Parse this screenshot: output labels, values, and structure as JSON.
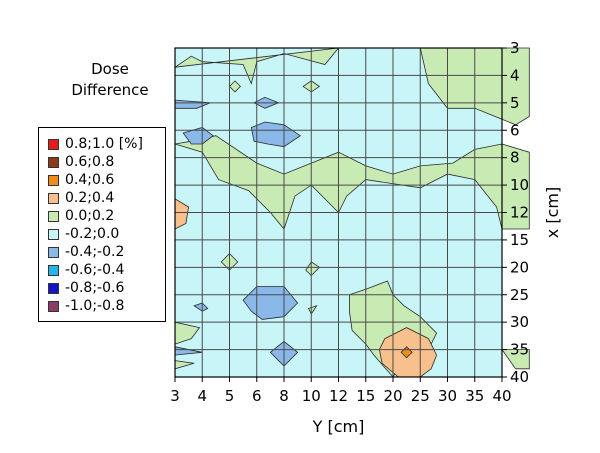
{
  "chart_data": {
    "type": "heatmap",
    "title_lines": [
      "Dose",
      "Difference"
    ],
    "xlabel": "Y [cm]",
    "ylabel": "x [cm]",
    "x_ticks": [
      "3",
      "4",
      "5",
      "6",
      "8",
      "10",
      "12",
      "15",
      "20",
      "25",
      "30",
      "35",
      "40"
    ],
    "y_ticks": [
      "3",
      "4",
      "5",
      "6",
      "8",
      "10",
      "12",
      "15",
      "20",
      "25",
      "30",
      "35",
      "40"
    ],
    "grid": true,
    "legend_position": "left",
    "legend": [
      {
        "label": "0.8;1.0 [%]",
        "color": "#e51c1c"
      },
      {
        "label": "0.6;0.8",
        "color": "#8b3a1a"
      },
      {
        "label": "0.4;0.6",
        "color": "#f08c1a"
      },
      {
        "label": "0.2;0.4",
        "color": "#f7c08c"
      },
      {
        "label": "0.0;0.2",
        "color": "#c8ebb4"
      },
      {
        "label": "-0.2;0.0",
        "color": "#c8f5f8"
      },
      {
        "label": "-0.4;-0.2",
        "color": "#8ab8e8"
      },
      {
        "label": "-0.6;-0.4",
        "color": "#28b4e6"
      },
      {
        "label": "-0.8;-0.6",
        "color": "#1414c8"
      },
      {
        "label": "-1.0;-0.8",
        "color": "#8c3c64"
      }
    ],
    "background_class": "-0.2;0.0",
    "regions": [
      {
        "class": "0.0;0.2",
        "points": [
          [
            0,
            0.7
          ],
          [
            0.6,
            0.3
          ],
          [
            1,
            0.5
          ],
          [
            2.5,
            0.6
          ],
          [
            2.8,
            1.3
          ],
          [
            3,
            0.5
          ],
          [
            4,
            0.2
          ],
          [
            5.5,
            0.6
          ],
          [
            6,
            0
          ]
        ]
      },
      {
        "class": "0.0;0.2",
        "points": [
          [
            9,
            0
          ],
          [
            9.3,
            1.3
          ],
          [
            10,
            2.2
          ],
          [
            11,
            2.2
          ],
          [
            12,
            2.6
          ],
          [
            12.5,
            2.8
          ],
          [
            13,
            2.5
          ],
          [
            13,
            0
          ]
        ]
      },
      {
        "class": "0.0;0.2",
        "points": [
          [
            0,
            3.5
          ],
          [
            1,
            3.8
          ],
          [
            1.6,
            4.8
          ],
          [
            2.7,
            5.2
          ],
          [
            3.5,
            6
          ],
          [
            4,
            6.6
          ],
          [
            4.4,
            5.4
          ],
          [
            5,
            5
          ],
          [
            6,
            6
          ],
          [
            6.3,
            5.4
          ],
          [
            7,
            4.8
          ],
          [
            9,
            5.1
          ],
          [
            10,
            4.6
          ],
          [
            11,
            4.8
          ],
          [
            11.8,
            5.8
          ],
          [
            12,
            6.6
          ],
          [
            13,
            6.6
          ],
          [
            13,
            3.8
          ],
          [
            12,
            3.5
          ],
          [
            11,
            3.7
          ],
          [
            10.2,
            4.2
          ],
          [
            9,
            4.3
          ],
          [
            8,
            4.6
          ],
          [
            7,
            4.3
          ],
          [
            6,
            3.8
          ],
          [
            5,
            4.2
          ],
          [
            4,
            4.6
          ],
          [
            3,
            4.2
          ],
          [
            1.5,
            3.2
          ],
          [
            0.6,
            3.4
          ]
        ]
      },
      {
        "class": "0.0;0.2",
        "points": [
          [
            0,
            10
          ],
          [
            0.9,
            10.2
          ],
          [
            0.6,
            10.6
          ],
          [
            0,
            10.8
          ]
        ]
      },
      {
        "class": "0.0;0.2",
        "points": [
          [
            0,
            11.4
          ],
          [
            0.7,
            11.5
          ],
          [
            0,
            11.7
          ]
        ]
      },
      {
        "class": "0.0;0.2",
        "points": [
          [
            6.4,
            9
          ],
          [
            7,
            8.8
          ],
          [
            7.8,
            8.5
          ],
          [
            8,
            9
          ],
          [
            8.4,
            9.4
          ],
          [
            9,
            9.8
          ],
          [
            9.6,
            10.4
          ],
          [
            9.3,
            11
          ],
          [
            8.3,
            11.5
          ],
          [
            8,
            12
          ],
          [
            7.3,
            11.2
          ],
          [
            7,
            10.8
          ],
          [
            6.5,
            10.3
          ],
          [
            6.4,
            9.6
          ]
        ]
      },
      {
        "class": "0.0;0.2",
        "points": [
          [
            12,
            11
          ],
          [
            12.5,
            11.7
          ],
          [
            13,
            11.7
          ],
          [
            13,
            11
          ]
        ]
      },
      {
        "class": "0.0;0.2",
        "points": [
          [
            1.7,
            7.8
          ],
          [
            2,
            7.5
          ],
          [
            2.3,
            7.8
          ],
          [
            2,
            8.1
          ]
        ]
      },
      {
        "class": "0.0;0.2",
        "points": [
          [
            4.8,
            8.1
          ],
          [
            5,
            7.8
          ],
          [
            5.3,
            8
          ],
          [
            5,
            8.3
          ]
        ]
      },
      {
        "class": "0.0;0.2",
        "points": [
          [
            4.9,
            9.5
          ],
          [
            5.2,
            9.4
          ],
          [
            5,
            9.7
          ]
        ]
      },
      {
        "class": "0.0;0.2",
        "points": [
          [
            4.7,
            1.4
          ],
          [
            5,
            1.2
          ],
          [
            5.3,
            1.4
          ],
          [
            5,
            1.6
          ]
        ]
      },
      {
        "class": "0.0;0.2",
        "points": [
          [
            2,
            1.4
          ],
          [
            2.2,
            1.2
          ],
          [
            2.4,
            1.4
          ],
          [
            2.2,
            1.6
          ]
        ]
      },
      {
        "class": "0.2;0.4",
        "points": [
          [
            0,
            5.5
          ],
          [
            0.5,
            5.8
          ],
          [
            0.4,
            6.4
          ],
          [
            0,
            6.6
          ]
        ]
      },
      {
        "class": "0.2;0.4",
        "points": [
          [
            7.7,
            10.6
          ],
          [
            8.5,
            10.2
          ],
          [
            9.3,
            10.6
          ],
          [
            9.6,
            11.2
          ],
          [
            9.4,
            11.7
          ],
          [
            9,
            12
          ],
          [
            8.2,
            12
          ],
          [
            7.6,
            11.5
          ],
          [
            7.5,
            11
          ]
        ]
      },
      {
        "class": "0.4;0.6",
        "points": [
          [
            8.3,
            11.1
          ],
          [
            8.5,
            10.9
          ],
          [
            8.7,
            11.1
          ],
          [
            8.5,
            11.3
          ]
        ]
      },
      {
        "class": "-0.4;-0.2",
        "points": [
          [
            0.3,
            3.1
          ],
          [
            1,
            2.9
          ],
          [
            1.4,
            3.2
          ],
          [
            1,
            3.5
          ],
          [
            0.6,
            3.5
          ]
        ]
      },
      {
        "class": "-0.4;-0.2",
        "points": [
          [
            2.8,
            2.9
          ],
          [
            3.3,
            2.7
          ],
          [
            4,
            2.8
          ],
          [
            4.6,
            3.2
          ],
          [
            4,
            3.6
          ],
          [
            3.4,
            3.5
          ],
          [
            2.9,
            3.4
          ]
        ]
      },
      {
        "class": "-0.4;-0.2",
        "points": [
          [
            2.5,
            9.2
          ],
          [
            3,
            8.7
          ],
          [
            4,
            8.7
          ],
          [
            4.5,
            9.3
          ],
          [
            4,
            9.8
          ],
          [
            3.2,
            9.9
          ],
          [
            2.8,
            9.6
          ]
        ]
      },
      {
        "class": "-0.4;-0.2",
        "points": [
          [
            3.5,
            11.1
          ],
          [
            4,
            10.7
          ],
          [
            4.5,
            11.1
          ],
          [
            4,
            11.6
          ]
        ]
      },
      {
        "class": "-0.4;-0.2",
        "points": [
          [
            0,
            1.9
          ],
          [
            1.3,
            2
          ],
          [
            0.8,
            2.2
          ],
          [
            0,
            2.2
          ]
        ]
      },
      {
        "class": "-0.4;-0.2",
        "points": [
          [
            2.9,
            2
          ],
          [
            3.3,
            1.8
          ],
          [
            3.8,
            2
          ],
          [
            3.3,
            2.2
          ]
        ]
      },
      {
        "class": "-0.4;-0.2",
        "points": [
          [
            0.7,
            9.4
          ],
          [
            1,
            9.3
          ],
          [
            1.2,
            9.5
          ],
          [
            1,
            9.6
          ]
        ]
      },
      {
        "class": "-0.4;-0.2",
        "points": [
          [
            0,
            10.9
          ],
          [
            1,
            11.1
          ],
          [
            0,
            11.2
          ]
        ]
      }
    ]
  }
}
